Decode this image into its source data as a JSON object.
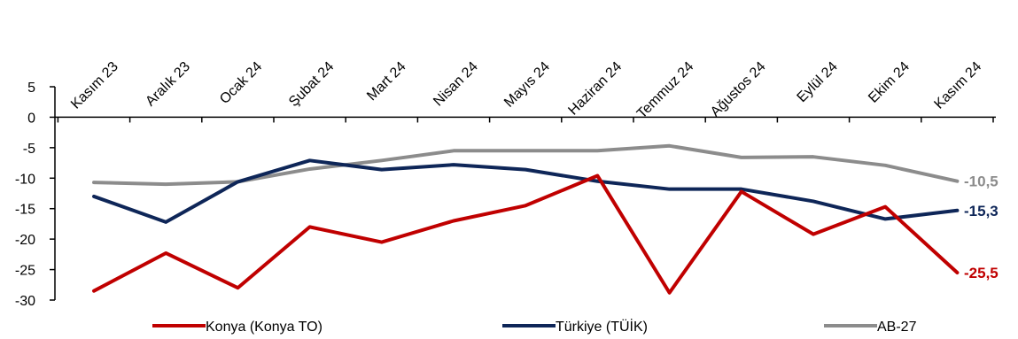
{
  "chart_data": {
    "type": "line",
    "categories": [
      "Kasım 23",
      "Aralık 23",
      "Ocak 24",
      "Şubat 24",
      "Mart 24",
      "Nisan 24",
      "Mayıs 24",
      "Haziran 24",
      "Temmuz 24",
      "Ağustos 24",
      "Eylül 24",
      "Ekim 24",
      "Kasım 24"
    ],
    "ylim": [
      -30,
      5
    ],
    "yticks": [
      5,
      0,
      -5,
      -10,
      -15,
      -20,
      -25,
      -30
    ],
    "grid": false,
    "legend_position": "bottom",
    "series": [
      {
        "name": "Konya (Konya TO)",
        "color": "#c00000",
        "values": [
          -28.5,
          -22.3,
          -28.0,
          -18.0,
          -20.5,
          -17.0,
          -14.5,
          -9.6,
          -28.8,
          -12.2,
          -19.2,
          -14.7,
          -25.5
        ],
        "end_label": "-25,5"
      },
      {
        "name": "Türkiye (TÜİK)",
        "color": "#0e2658",
        "values": [
          -13.0,
          -17.2,
          -10.6,
          -7.1,
          -8.6,
          -7.8,
          -8.6,
          -10.5,
          -11.8,
          -11.8,
          -13.8,
          -16.7,
          -15.3
        ],
        "end_label": "-15,3"
      },
      {
        "name": "AB-27",
        "color": "#8c8c8c",
        "values": [
          -10.7,
          -11.0,
          -10.6,
          -8.5,
          -7.1,
          -5.5,
          -5.5,
          -5.5,
          -4.7,
          -6.6,
          -6.5,
          -7.9,
          -10.5
        ],
        "end_label": "-10,5"
      }
    ]
  }
}
